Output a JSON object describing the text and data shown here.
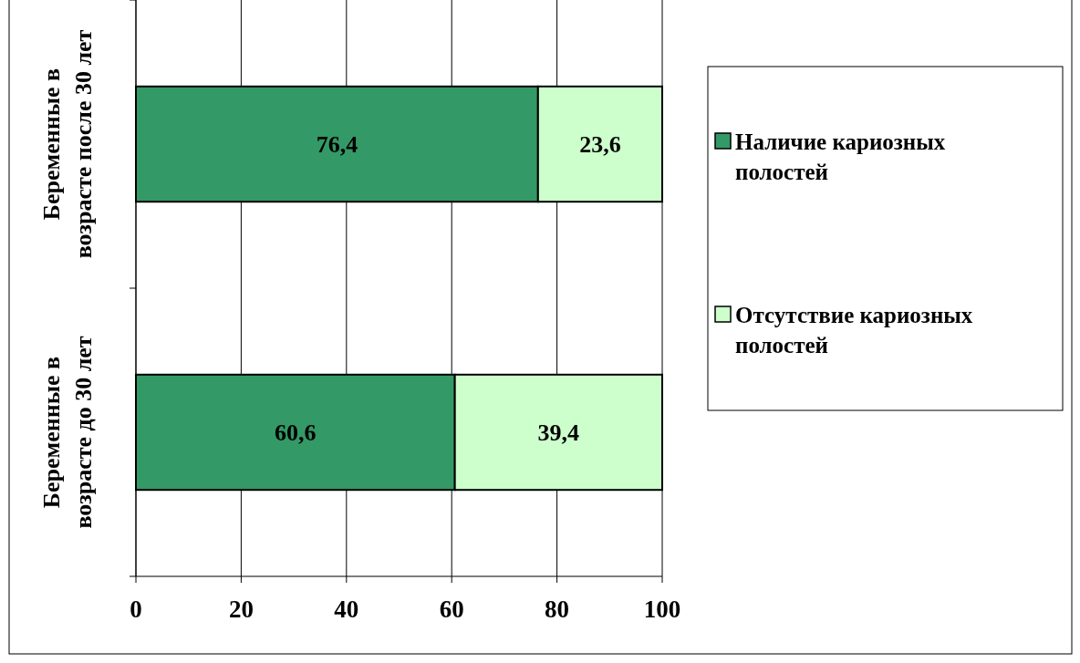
{
  "chart_data": {
    "type": "bar",
    "orientation": "horizontal",
    "stacked": true,
    "categories": [
      "Беременные в возрасте после 30 лет",
      "Беременные в возрасте до 30 лет"
    ],
    "series": [
      {
        "name": "Наличие кариозных полостей",
        "color": "#339966",
        "values": [
          76.4,
          60.6
        ],
        "value_labels": [
          "76,4",
          "60,6"
        ]
      },
      {
        "name": "Отсутствие кариозных полостей",
        "color": "#ccffcc",
        "values": [
          23.6,
          39.4
        ],
        "value_labels": [
          "23,6",
          "39,4"
        ]
      }
    ],
    "xlim": [
      0,
      100
    ],
    "xticks": [
      0,
      20,
      40,
      60,
      80,
      100
    ],
    "grid": "x",
    "legend": "right"
  }
}
